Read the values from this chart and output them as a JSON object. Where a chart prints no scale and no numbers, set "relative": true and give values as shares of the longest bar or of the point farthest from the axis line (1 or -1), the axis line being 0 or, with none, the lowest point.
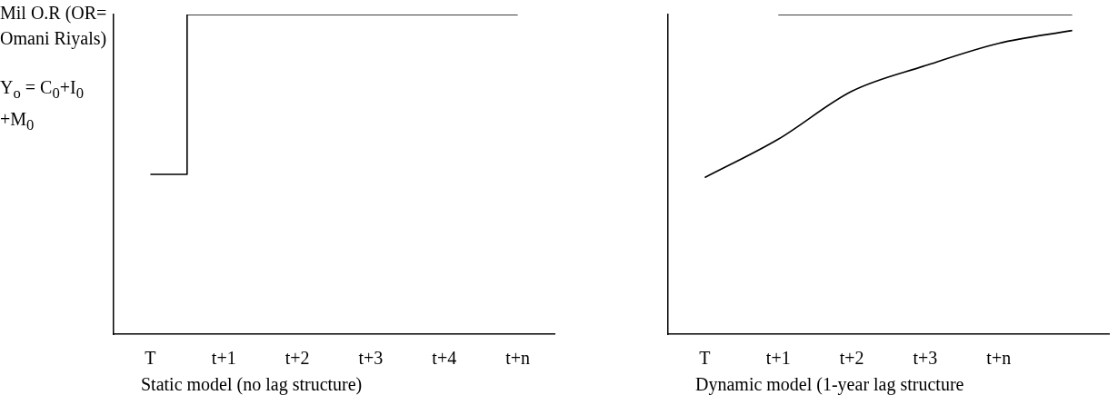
{
  "chart_data": [
    {
      "type": "step",
      "relative": true,
      "ylabel": "Mil O.R (OR= Omani Riyals)",
      "xlabel": "Static model (no lag structure)",
      "annotations": [
        "Y$_{o}$  =  C$_{0}$+I$_{0}$ +M$_{0}$"
      ],
      "categories": [
        "T",
        "t+1",
        "t+2",
        "t+3",
        "t+4",
        "t+n"
      ],
      "series": [
        {
          "color": "#000000",
          "values": [
            0.5,
            1,
            1,
            1,
            1,
            1
          ]
        }
      ],
      "grid": false,
      "legend": false,
      "marker": "none"
    },
    {
      "type": "line",
      "relative": true,
      "xlabel": "Dynamic model (1-year lag structure",
      "categories": [
        "T",
        "t+1",
        "t+2",
        "t+3",
        "t+n",
        null
      ],
      "series": [
        {
          "color": "#000000",
          "values": [
            0.49,
            0.61,
            0.76,
            0.84,
            0.91,
            0.95
          ]
        },
        {
          "color": "#000000",
          "values": [
            null,
            1,
            1,
            1,
            1,
            1
          ]
        }
      ],
      "grid": false,
      "legend": false,
      "marker": "none"
    }
  ]
}
